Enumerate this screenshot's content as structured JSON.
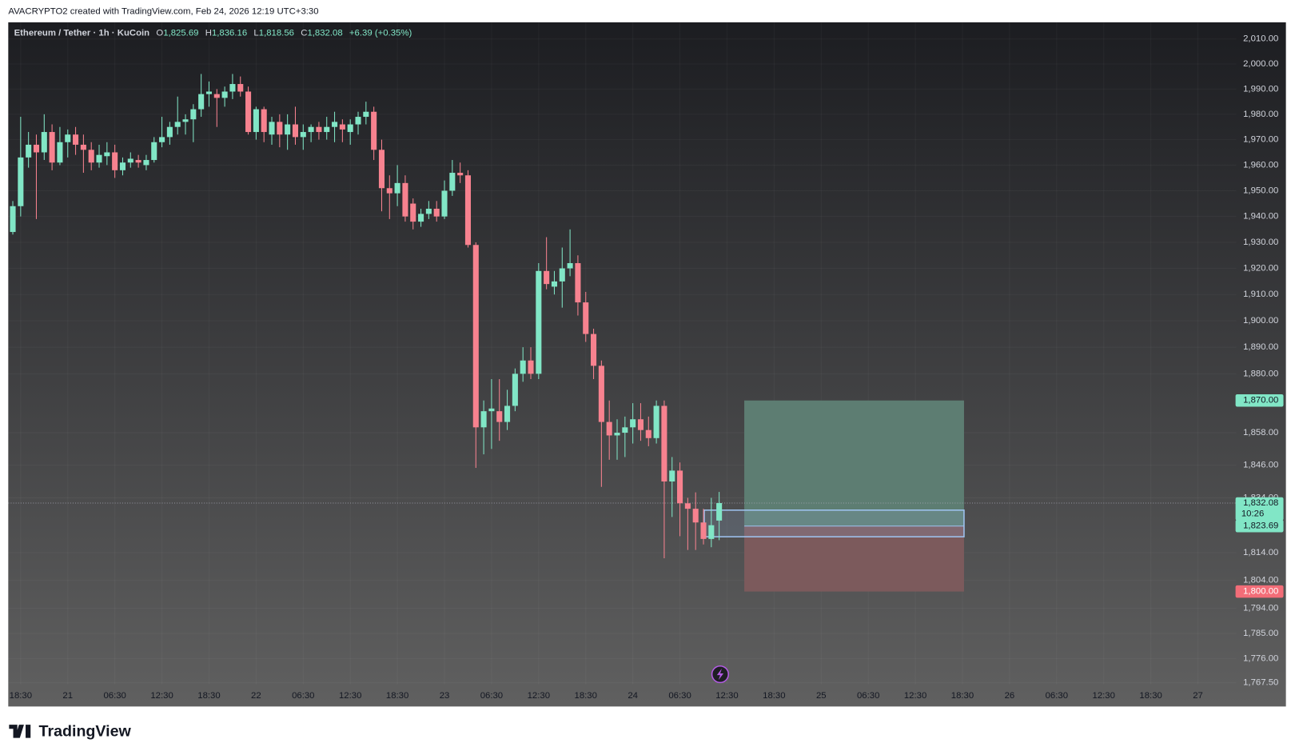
{
  "chart_data": {
    "type": "candlestick",
    "caption": "AVACRYPTO2 created with TradingView.com, Feb 24, 2026 12:19 UTC+3:30",
    "title": "Ethereum / Tether · 1h · KuCoin",
    "legend": [
      {
        "label": "O",
        "value": "1,825.69"
      },
      {
        "label": "H",
        "value": "1,836.16"
      },
      {
        "label": "L",
        "value": "1,818.56"
      },
      {
        "label": "C",
        "value": "1,832.08"
      }
    ],
    "change": "+6.39 (+0.35%)",
    "brand": "TradingView",
    "up_color": "#81e6c6",
    "down_color": "#f7828f",
    "log_scale": true,
    "open": [
      1934,
      1944,
      1963,
      1968,
      1965,
      1973,
      1961,
      1969,
      1972,
      1968,
      1966,
      1961,
      1963.5,
      1965,
      1958,
      1961,
      1962,
      1960,
      1962,
      1969,
      1971,
      1975,
      1977,
      1978,
      1982,
      1988,
      1988,
      1986.5,
      1989,
      1992,
      1989,
      1973,
      1982,
      1972,
      1977,
      1972,
      1976,
      1971,
      1973,
      1975,
      1973,
      1975,
      1976,
      1973,
      1976,
      1979,
      1981,
      1966,
      1951,
      1949,
      1953,
      1945,
      1938,
      1941,
      1943,
      1940,
      1950,
      1957,
      1956,
      1929,
      1860,
      1866,
      1866,
      1862,
      1868,
      1880,
      1885,
      1880,
      1919,
      1913,
      1915,
      1920,
      1922,
      1907,
      1895,
      1883,
      1862,
      1857,
      1858,
      1860,
      1863,
      1859,
      1856,
      1868,
      1840,
      1844,
      1832,
      1830,
      1825,
      1819,
      1825.69
    ],
    "high": [
      1946,
      1979,
      1973,
      1972,
      1980,
      1976,
      1975,
      1974,
      1975,
      1972,
      1969,
      1968,
      1969,
      1968,
      1963,
      1965,
      1964,
      1964,
      1971,
      1979,
      1977,
      1987,
      1980,
      1984,
      1996,
      1993,
      1990,
      1991,
      1996,
      1995,
      1991,
      1983,
      1983,
      1979,
      1980,
      1980,
      1983,
      1976,
      1976,
      1977,
      1979,
      1981,
      1978,
      1978,
      1981,
      1985,
      1983,
      1970,
      1956,
      1960,
      1956,
      1947,
      1943,
      1946,
      1946,
      1954,
      1962,
      1961,
      1958,
      1930,
      1870,
      1878,
      1878,
      1874,
      1882,
      1890,
      1890,
      1922,
      1932,
      1919,
      1928,
      1935,
      1925,
      1911,
      1897,
      1885,
      1870,
      1863,
      1864,
      1869,
      1869,
      1864,
      1870,
      1870,
      1849,
      1847,
      1834,
      1836,
      1830,
      1834,
      1836.16
    ],
    "low": [
      1933,
      1940,
      1959,
      1939,
      1962,
      1958,
      1960,
      1963,
      1964,
      1957,
      1958,
      1959,
      1960,
      1955,
      1956,
      1959,
      1959,
      1958,
      1961,
      1967,
      1968,
      1972,
      1972,
      1969,
      1979,
      1983,
      1975,
      1983,
      1986,
      1987,
      1972,
      1970,
      1969,
      1968,
      1967,
      1966,
      1968,
      1966,
      1969,
      1970,
      1970,
      1969,
      1969,
      1968,
      1972,
      1976,
      1962,
      1942,
      1939,
      1944,
      1938,
      1935,
      1936,
      1939,
      1938,
      1939,
      1948,
      1953,
      1928,
      1845,
      1850,
      1852,
      1855,
      1859,
      1866,
      1877,
      1878,
      1878,
      1912,
      1910,
      1905,
      1917,
      1902,
      1892,
      1878,
      1838,
      1848,
      1848,
      1849,
      1854,
      1855,
      1853,
      1854,
      1812,
      1827,
      1820,
      1815,
      1815,
      1817,
      1816,
      1818.56
    ],
    "close": [
      1944,
      1963,
      1968,
      1965,
      1973,
      1961,
      1969,
      1972,
      1968,
      1966,
      1961,
      1964,
      1965,
      1958,
      1961,
      1962.5,
      1961,
      1962,
      1969,
      1971,
      1975,
      1977,
      1978,
      1982,
      1988,
      1989,
      1986.5,
      1989,
      1992,
      1989,
      1973,
      1982,
      1973,
      1977,
      1972,
      1976,
      1971,
      1973,
      1975,
      1973,
      1975,
      1977,
      1974,
      1976,
      1979,
      1981,
      1966,
      1951,
      1949,
      1953,
      1940,
      1938,
      1941,
      1943,
      1940,
      1950,
      1957,
      1956,
      1929,
      1860,
      1866,
      1867,
      1862,
      1868,
      1880,
      1885,
      1880,
      1919,
      1914,
      1915,
      1920,
      1922,
      1907,
      1895,
      1883,
      1862,
      1857,
      1858,
      1860,
      1863,
      1859,
      1856,
      1868,
      1840,
      1844,
      1832,
      1830,
      1825,
      1819,
      1824,
      1832.08
    ],
    "xlim": [
      -0.58,
      155.9
    ],
    "xticks": [
      {
        "value": 1,
        "label": "18:30"
      },
      {
        "value": 7,
        "label": "21"
      },
      {
        "value": 13,
        "label": "06:30"
      },
      {
        "value": 19,
        "label": "12:30"
      },
      {
        "value": 25,
        "label": "18:30"
      },
      {
        "value": 31,
        "label": "22"
      },
      {
        "value": 37,
        "label": "06:30"
      },
      {
        "value": 43,
        "label": "12:30"
      },
      {
        "value": 49,
        "label": "18:30"
      },
      {
        "value": 55,
        "label": "23"
      },
      {
        "value": 61,
        "label": "06:30"
      },
      {
        "value": 67,
        "label": "12:30"
      },
      {
        "value": 73,
        "label": "18:30"
      },
      {
        "value": 79,
        "label": "24"
      },
      {
        "value": 85,
        "label": "06:30"
      },
      {
        "value": 91,
        "label": "12:30"
      },
      {
        "value": 97,
        "label": "18:30"
      },
      {
        "value": 103,
        "label": "25"
      },
      {
        "value": 109,
        "label": "06:30"
      },
      {
        "value": 115,
        "label": "12:30"
      },
      {
        "value": 121,
        "label": "18:30"
      },
      {
        "value": 127,
        "label": "26"
      },
      {
        "value": 133,
        "label": "06:30"
      },
      {
        "value": 139,
        "label": "12:30"
      },
      {
        "value": 145,
        "label": "18:30"
      },
      {
        "value": 151,
        "label": "27"
      }
    ],
    "ylim": [
      1767.0,
      2016.7
    ],
    "yticks": [
      {
        "value": 2010,
        "label": "2,010.00"
      },
      {
        "value": 2000,
        "label": "2,000.00"
      },
      {
        "value": 1990,
        "label": "1,990.00"
      },
      {
        "value": 1980,
        "label": "1,980.00"
      },
      {
        "value": 1970,
        "label": "1,970.00"
      },
      {
        "value": 1960,
        "label": "1,960.00"
      },
      {
        "value": 1950,
        "label": "1,950.00"
      },
      {
        "value": 1940,
        "label": "1,940.00"
      },
      {
        "value": 1930,
        "label": "1,930.00"
      },
      {
        "value": 1920,
        "label": "1,920.00"
      },
      {
        "value": 1910,
        "label": "1,910.00"
      },
      {
        "value": 1900,
        "label": "1,900.00"
      },
      {
        "value": 1890,
        "label": "1,890.00"
      },
      {
        "value": 1880,
        "label": "1,880.00"
      },
      {
        "value": 1858,
        "label": "1,858.00"
      },
      {
        "value": 1846,
        "label": "1,846.00"
      },
      {
        "value": 1834,
        "label": "1,834.00"
      },
      {
        "value": 1814,
        "label": "1,814.00"
      },
      {
        "value": 1804,
        "label": "1,804.00"
      },
      {
        "value": 1794,
        "label": "1,794.00"
      },
      {
        "value": 1785,
        "label": "1,785.00"
      },
      {
        "value": 1776,
        "label": "1,776.00"
      },
      {
        "value": 1767.5,
        "label": "1,767.50"
      }
    ],
    "position": {
      "start": 93.2,
      "end": 121.2,
      "target": 1870,
      "entry": 1823.69,
      "stop": 1800,
      "profit_color": "#5d7d72",
      "loss_color": "#7c5a5c"
    },
    "rectangle": {
      "start": 88.1,
      "end": 121.2,
      "top": 1829.5,
      "bottom": 1819.8,
      "color": "#9ec3f0"
    },
    "current_price": {
      "value": 1832.08,
      "label": "1,832.08",
      "countdown": "10:26",
      "color": "#81e6c6"
    },
    "price_tags": [
      {
        "value": 1870,
        "label": "1,870.00",
        "color": "#81e6c6"
      },
      {
        "value": 1823.69,
        "label": "1,823.69",
        "color": "#81e6c6"
      },
      {
        "value": 1800,
        "label": "1,800.00",
        "color": "#f26d78"
      }
    ]
  }
}
